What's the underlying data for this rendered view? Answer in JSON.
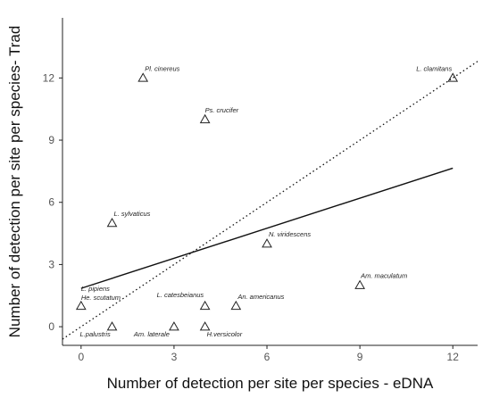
{
  "chart_data": {
    "type": "scatter",
    "xlabel": "Number of detection per site per species - eDNA",
    "ylabel": "Number of detection per site per species- Trad",
    "xlim": [
      -0.6,
      12.8
    ],
    "ylim": [
      -0.9,
      14.9
    ],
    "x_ticks": [
      "0",
      "3",
      "6",
      "9",
      "12"
    ],
    "y_ticks": [
      "0",
      "3",
      "6",
      "9",
      "12"
    ],
    "grid": false,
    "legend": "none",
    "marker": "open-triangle",
    "points": [
      {
        "label": "Pl. cinereus",
        "x": 2,
        "y": 12
      },
      {
        "label": "L. clamitans",
        "x": 12,
        "y": 12
      },
      {
        "label": "Ps. crucifer",
        "x": 4,
        "y": 10
      },
      {
        "label": "L. sylvaticus",
        "x": 1,
        "y": 5
      },
      {
        "label": "N. viridescens",
        "x": 6,
        "y": 4
      },
      {
        "label": "Am. maculatum",
        "x": 9,
        "y": 2
      },
      {
        "label": "L. pipiens",
        "x": 0,
        "y": 1
      },
      {
        "label": "He. scutatum",
        "x": 0,
        "y": 1
      },
      {
        "label": "L. catesbeianus",
        "x": 4,
        "y": 1
      },
      {
        "label": "An. americanus",
        "x": 5,
        "y": 1
      },
      {
        "label": "L.palustris",
        "x": 1,
        "y": 0
      },
      {
        "label": "Am. laterale",
        "x": 3,
        "y": 0
      },
      {
        "label": "H.versicolor",
        "x": 4,
        "y": 0
      }
    ],
    "lines": [
      {
        "style": "solid",
        "from": [
          0,
          1.85
        ],
        "to": [
          12,
          7.65
        ]
      },
      {
        "style": "dotted",
        "from": [
          -0.6,
          -0.6
        ],
        "to": [
          12.8,
          12.8
        ]
      }
    ],
    "colors": {
      "marker": "#222222",
      "axis": "#222222",
      "tick_label": "#555555"
    }
  }
}
